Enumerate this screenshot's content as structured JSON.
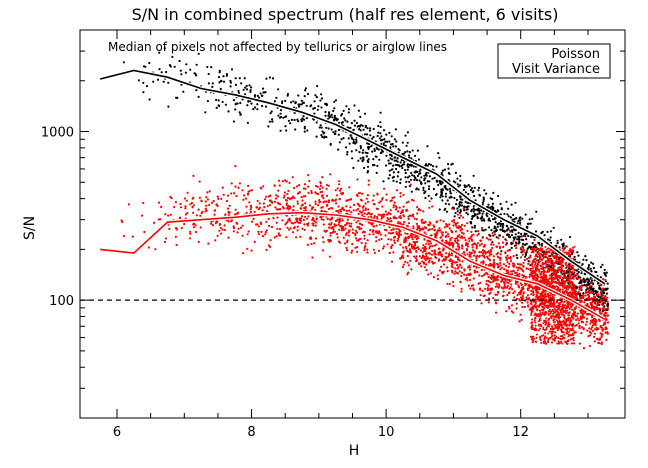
{
  "chart_data": {
    "type": "scatter",
    "title": "S/N in combined spectrum (half res element, 6 visits)",
    "annotation": "Median of pixels not affected by tellurics or airglow lines",
    "xlabel": "H",
    "ylabel": "S/N",
    "xlim": [
      5.45,
      13.55
    ],
    "ylim": [
      20,
      4000
    ],
    "y_scale": "log",
    "x_ticks": [
      6,
      8,
      10,
      12
    ],
    "y_ticks": [
      100,
      1000
    ],
    "reference_line": {
      "y": 100,
      "style": "dashed"
    },
    "legend": {
      "position": "top-right"
    },
    "colors": {
      "poisson": "#000000",
      "visit_variance": "#ff0000"
    },
    "series": [
      {
        "name": "Poisson",
        "kind": "scatter",
        "trend": [
          [
            6.2,
            2350
          ],
          [
            7.0,
            2000
          ],
          [
            8.0,
            1580
          ],
          [
            9.0,
            1200
          ],
          [
            10.0,
            760
          ],
          [
            11.0,
            430
          ],
          [
            12.0,
            240
          ],
          [
            12.7,
            160
          ],
          [
            13.2,
            110
          ]
        ],
        "scatter_range_dex": 0.32
      },
      {
        "name": "Visit Variance",
        "kind": "scatter",
        "trend": [
          [
            6.2,
            300
          ],
          [
            7.0,
            315
          ],
          [
            8.0,
            330
          ],
          [
            9.0,
            330
          ],
          [
            10.0,
            285
          ],
          [
            11.0,
            200
          ],
          [
            12.0,
            130
          ],
          [
            12.7,
            100
          ],
          [
            13.2,
            80
          ]
        ],
        "scatter_range_dex": 0.42
      }
    ],
    "poisson_median_line": [
      [
        5.75,
        2050
      ],
      [
        6.25,
        2300
      ],
      [
        6.75,
        2100
      ],
      [
        7.25,
        1800
      ],
      [
        7.75,
        1650
      ],
      [
        8.25,
        1480
      ],
      [
        8.75,
        1300
      ],
      [
        9.25,
        1100
      ],
      [
        9.75,
        880
      ],
      [
        10.25,
        700
      ],
      [
        10.75,
        560
      ],
      [
        11.25,
        390
      ],
      [
        11.75,
        300
      ],
      [
        12.25,
        240
      ],
      [
        12.75,
        170
      ],
      [
        13.25,
        125
      ]
    ],
    "visit_variance_median_line": [
      [
        5.75,
        200
      ],
      [
        6.25,
        190
      ],
      [
        6.75,
        290
      ],
      [
        7.25,
        300
      ],
      [
        7.75,
        310
      ],
      [
        8.25,
        325
      ],
      [
        8.75,
        330
      ],
      [
        9.25,
        320
      ],
      [
        9.75,
        300
      ],
      [
        10.25,
        270
      ],
      [
        10.75,
        225
      ],
      [
        11.25,
        170
      ],
      [
        11.75,
        140
      ],
      [
        12.25,
        125
      ],
      [
        12.75,
        100
      ],
      [
        13.25,
        77
      ]
    ]
  }
}
